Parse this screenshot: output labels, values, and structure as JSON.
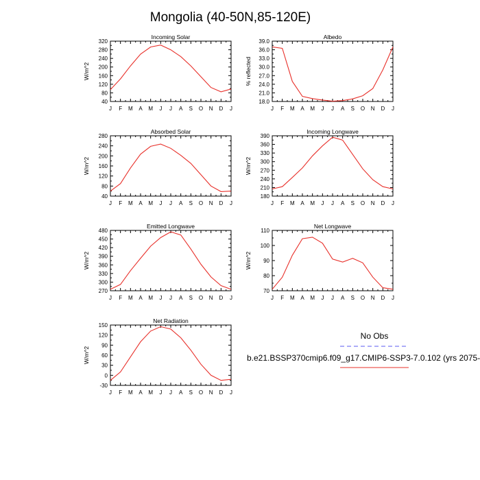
{
  "page_title": "Mongolia (40-50N,85-120E)",
  "legend": {
    "obs_label": "No Obs",
    "obs_color": "#5a5af0",
    "model_label": "b.e21.BSSP370cmip6.f09_g17.CMIP6-SSP3-7.0.102 (yrs 2075-",
    "model_color": "#e8302a"
  },
  "chart_data": [
    {
      "type": "line",
      "title": "Incoming Solar",
      "ylabel": "W/m^2",
      "x": [
        "J",
        "F",
        "M",
        "A",
        "M",
        "J",
        "J",
        "A",
        "S",
        "O",
        "N",
        "D",
        "J"
      ],
      "ylim": [
        40,
        320
      ],
      "yticks": [
        40,
        80,
        120,
        160,
        200,
        240,
        280,
        320
      ],
      "ytick_labels": [
        "40",
        "80",
        "120",
        "160",
        "200",
        "240",
        "280",
        "320"
      ],
      "series": [
        {
          "values": [
            95,
            145,
            205,
            260,
            293,
            302,
            280,
            248,
            205,
            155,
            105,
            85,
            98
          ]
        }
      ]
    },
    {
      "type": "line",
      "title": "Albedo",
      "ylabel": "% reflected",
      "x": [
        "J",
        "F",
        "M",
        "A",
        "M",
        "J",
        "J",
        "A",
        "S",
        "O",
        "N",
        "D",
        "J"
      ],
      "ylim": [
        18,
        39
      ],
      "yticks": [
        18,
        21,
        24,
        27,
        30,
        33,
        36,
        39
      ],
      "ytick_labels": [
        "18.0",
        "21.0",
        "24.0",
        "27.0",
        "30.0",
        "33.0",
        "36.0",
        "39.0"
      ],
      "series": [
        {
          "values": [
            37.0,
            36.5,
            25.0,
            19.8,
            19.0,
            18.5,
            18.1,
            18.3,
            18.9,
            20.0,
            22.5,
            29.0,
            37.0
          ]
        }
      ]
    },
    {
      "type": "line",
      "title": "Absorbed Solar",
      "ylabel": "W/m^2",
      "x": [
        "J",
        "F",
        "M",
        "A",
        "M",
        "J",
        "J",
        "A",
        "S",
        "O",
        "N",
        "D",
        "J"
      ],
      "ylim": [
        40,
        280
      ],
      "yticks": [
        40,
        80,
        120,
        160,
        200,
        240,
        280
      ],
      "ytick_labels": [
        "40",
        "80",
        "120",
        "160",
        "200",
        "240",
        "280"
      ],
      "series": [
        {
          "values": [
            60,
            90,
            152,
            207,
            238,
            247,
            230,
            202,
            170,
            125,
            80,
            58,
            60
          ]
        }
      ]
    },
    {
      "type": "line",
      "title": "Incoming Longwave",
      "ylabel": "W/m^2",
      "x": [
        "J",
        "F",
        "M",
        "A",
        "M",
        "J",
        "J",
        "A",
        "S",
        "O",
        "N",
        "D",
        "J"
      ],
      "ylim": [
        180,
        390
      ],
      "yticks": [
        180,
        210,
        240,
        270,
        300,
        330,
        360,
        390
      ],
      "ytick_labels": [
        "180",
        "210",
        "240",
        "270",
        "300",
        "330",
        "360",
        "390"
      ],
      "series": [
        {
          "values": [
            205,
            213,
            245,
            278,
            320,
            355,
            385,
            375,
            325,
            275,
            237,
            213,
            205
          ]
        }
      ]
    },
    {
      "type": "line",
      "title": "Emitted Longwave",
      "ylabel": "W/m^2",
      "x": [
        "J",
        "F",
        "M",
        "A",
        "M",
        "J",
        "J",
        "A",
        "S",
        "O",
        "N",
        "D",
        "J"
      ],
      "ylim": [
        270,
        480
      ],
      "yticks": [
        270,
        300,
        330,
        360,
        390,
        420,
        450,
        480
      ],
      "ytick_labels": [
        "270",
        "300",
        "330",
        "360",
        "390",
        "420",
        "450",
        "480"
      ],
      "series": [
        {
          "values": [
            275,
            292,
            340,
            383,
            425,
            455,
            475,
            464,
            415,
            362,
            318,
            288,
            275
          ]
        }
      ]
    },
    {
      "type": "line",
      "title": "Net Longwave",
      "ylabel": "W/m^2",
      "x": [
        "J",
        "F",
        "M",
        "A",
        "M",
        "J",
        "J",
        "A",
        "S",
        "O",
        "N",
        "D",
        "J"
      ],
      "ylim": [
        70,
        110
      ],
      "yticks": [
        70,
        80,
        90,
        100,
        110
      ],
      "ytick_labels": [
        "70",
        "80",
        "90",
        "100",
        "110"
      ],
      "series": [
        {
          "values": [
            71,
            79,
            93.5,
            104.5,
            105.5,
            101.5,
            91,
            89,
            91.5,
            88.5,
            79,
            72,
            71
          ]
        }
      ]
    },
    {
      "type": "line",
      "title": "Net Radiation",
      "ylabel": "W/m^2",
      "x": [
        "J",
        "F",
        "M",
        "A",
        "M",
        "J",
        "J",
        "A",
        "S",
        "O",
        "N",
        "D",
        "J"
      ],
      "ylim": [
        -30,
        150
      ],
      "yticks": [
        -30,
        0,
        30,
        60,
        90,
        120,
        150
      ],
      "ytick_labels": [
        "-30",
        "0",
        "30",
        "60",
        "90",
        "120",
        "150"
      ],
      "series": [
        {
          "values": [
            -15,
            10,
            55,
            100,
            132,
            145,
            138,
            112,
            75,
            33,
            0,
            -15,
            -12
          ]
        }
      ]
    }
  ]
}
